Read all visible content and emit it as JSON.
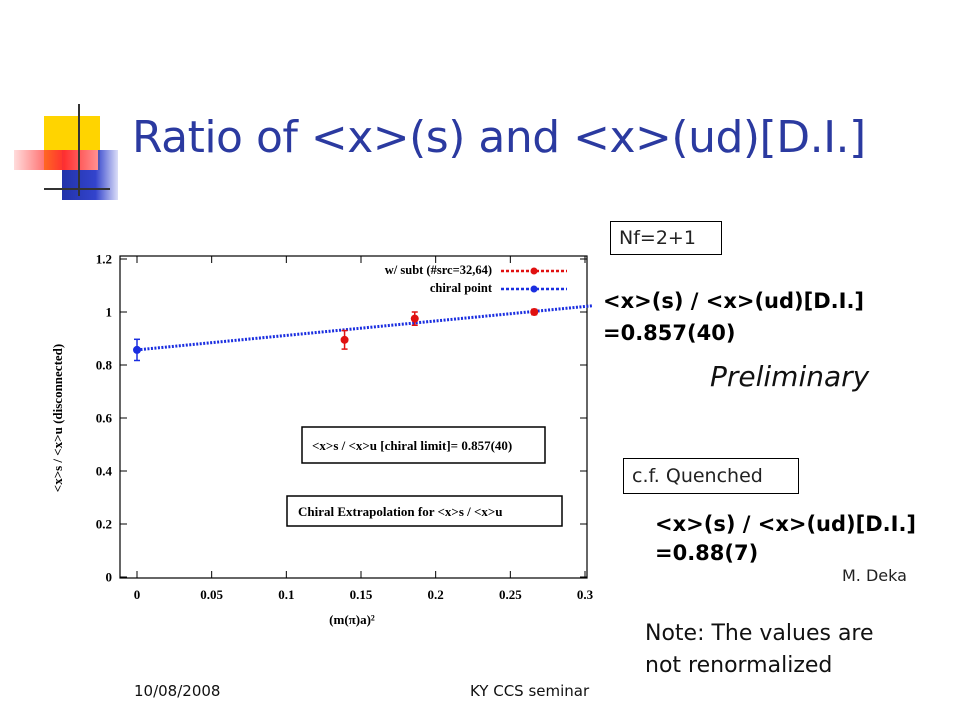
{
  "slide": {
    "title": "Ratio of <x>(s) and <x>(ud)[D.I.]",
    "nf_label": "Nf=2+1",
    "result_line1": "<x>(s) / <x>(ud)[D.I.]",
    "result_line2": "=0.857(40)",
    "preliminary": "Preliminary",
    "cf_label": "c.f. Quenched",
    "quenched_line1": "<x>(s) / <x>(ud)[D.I.]",
    "quenched_line2": "=0.88(7)",
    "citation": "M. Deka",
    "note_line1": "Note: The values are",
    "note_line2": "not renormalized",
    "footer_date": "10/08/2008",
    "footer_center": "KY CCS seminar"
  },
  "colors": {
    "title": "#2b3aa0",
    "series_subt": "#e01010",
    "series_chiral": "#1a2ee0",
    "deco_yellow": "#ffd400",
    "deco_blue": "#2233aa",
    "deco_red": "#ff3030"
  },
  "chart_data": {
    "type": "scatter",
    "ylabel": "<x>s / <x>u (disconnected)",
    "xlabel": "(m(π)a)²",
    "xlim": [
      0,
      0.3
    ],
    "ylim": [
      0,
      1.2
    ],
    "xticks": [
      "0",
      "0.05",
      "0.1",
      "0.15",
      "0.2",
      "0.25",
      "0.3"
    ],
    "yticks": [
      "0",
      "0.2",
      "0.4",
      "0.6",
      "0.8",
      "1",
      "1.2"
    ],
    "legend_position": "top-right",
    "series": [
      {
        "name": "w/ subt (#src=32,64)",
        "points": [
          {
            "x": 0.139,
            "y": 0.895,
            "err": 0.035
          },
          {
            "x": 0.186,
            "y": 0.975,
            "err": 0.025
          },
          {
            "x": 0.266,
            "y": 1.0,
            "err": 0.01
          }
        ]
      },
      {
        "name": "chiral point",
        "points": [
          {
            "x": 0.0,
            "y": 0.857,
            "err": 0.04
          }
        ]
      }
    ],
    "fit_line": {
      "x0": 0.0,
      "y0": 0.857,
      "x1": 0.3,
      "y1": 1.02
    },
    "annotation_1": "<x>s / <x>u [chiral limit]= 0.857(40)",
    "annotation_2": "Chiral Extrapolation for <x>s / <x>u"
  }
}
